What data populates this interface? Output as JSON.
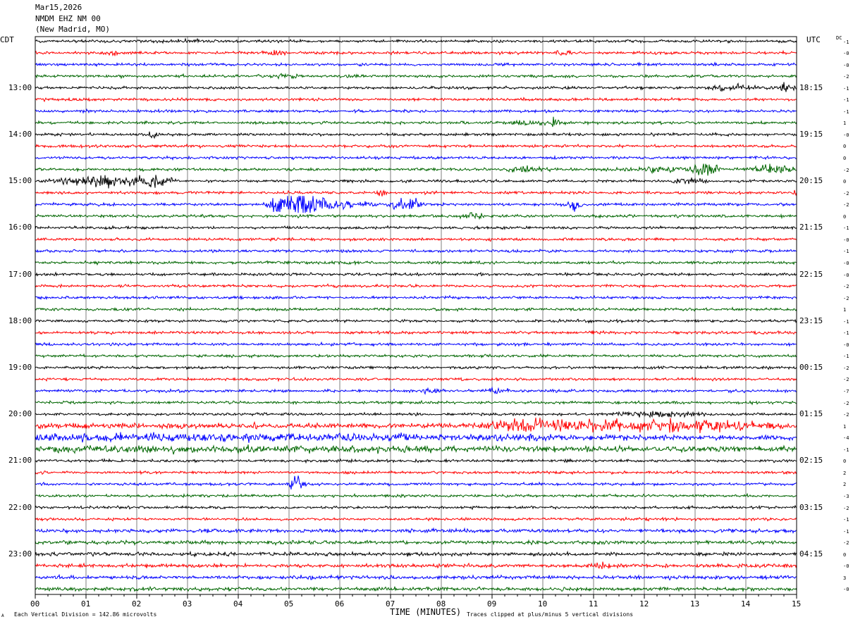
{
  "header": {
    "date": "Mar15,2026",
    "station": "NMDM EHZ NM 00",
    "location": "(New Madrid, MO)"
  },
  "left_axis_title": "CDT",
  "right_axis_title": "UTC",
  "dc_title": "DC",
  "footer": {
    "scale_note": "Each Vertical Division =  142.86 microvolts",
    "clip_note": "Traces clipped at plus/minus 5 vertical divisions",
    "corner_mark": "A"
  },
  "colors": {
    "trace_cycle": [
      "#000000",
      "#ff0000",
      "#0000ff",
      "#006600"
    ],
    "grid": "#7f7f7f"
  },
  "chart_data": {
    "type": "line",
    "xlabel": "TIME (MINUTES)",
    "xlim": [
      0,
      15
    ],
    "x_ticks": [
      "00",
      "01",
      "02",
      "03",
      "04",
      "05",
      "06",
      "07",
      "08",
      "09",
      "10",
      "11",
      "12",
      "13",
      "14",
      "15"
    ],
    "traces_per_hour": 4,
    "trace_count": 48,
    "left_hour_labels": [
      "13:00",
      "14:00",
      "15:00",
      "16:00",
      "17:00",
      "18:00",
      "19:00",
      "20:00",
      "21:00",
      "22:00",
      "23:00"
    ],
    "right_hour_labels": [
      "18:15",
      "19:15",
      "20:15",
      "21:15",
      "22:15",
      "23:15",
      "00:15",
      "01:15",
      "02:15",
      "03:15",
      "04:15"
    ],
    "dc_offsets": [
      "-1",
      "-0",
      "-0",
      "-2",
      "-1",
      "-1",
      "-1",
      "1",
      "-0",
      "0",
      "0",
      "-2",
      "0",
      "-2",
      "-2",
      "0",
      "-1",
      "-0",
      "-1",
      "-0",
      "-0",
      "-2",
      "-2",
      "1",
      "-1",
      "-1",
      "-0",
      "-1",
      "-2",
      "-2",
      "-7",
      "-2",
      "-2",
      "1",
      "-4",
      "-1",
      "0",
      "2",
      "2",
      "-3",
      "-2",
      "-1",
      "-1",
      "-2",
      "0",
      "-0",
      "3",
      "-0"
    ]
  }
}
